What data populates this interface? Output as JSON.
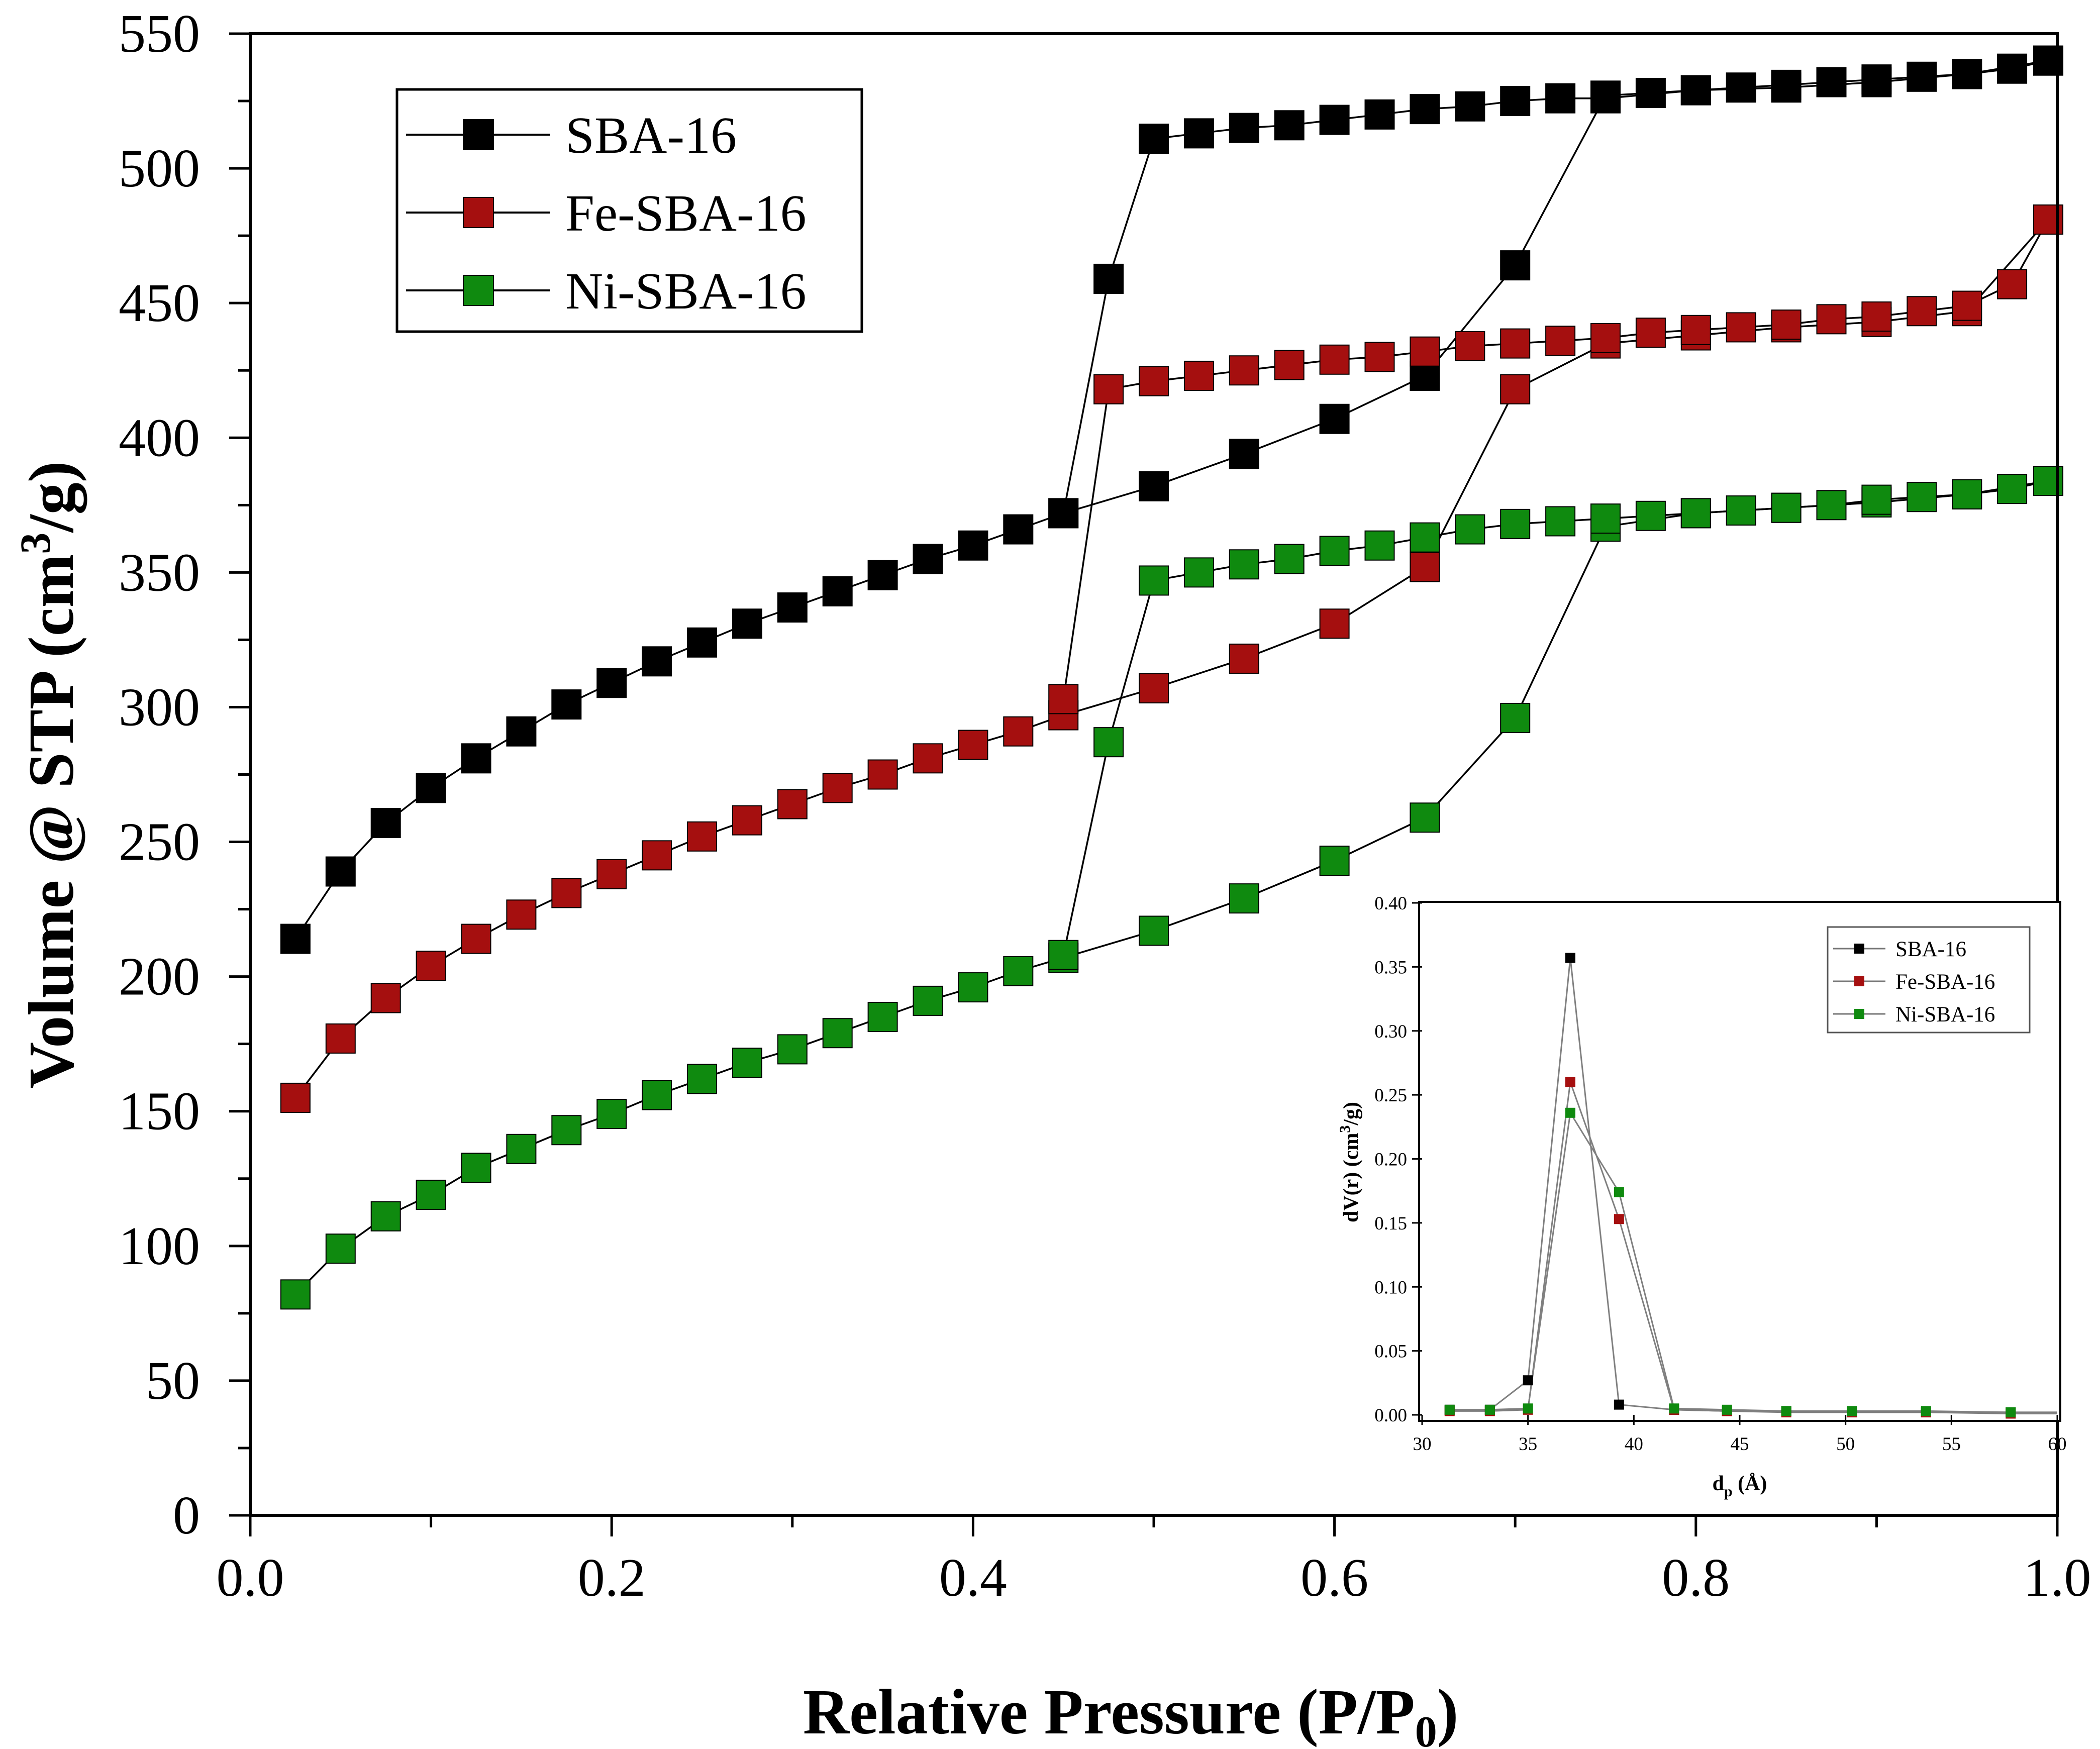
{
  "chart_data": [
    {
      "type": "scatter",
      "title": "",
      "xlabel": "Relative Pressure (P/P0)",
      "ylabel": "Volume @ STP (cm3/g)",
      "xlim": [
        0.0,
        1.0
      ],
      "ylim": [
        0,
        550
      ],
      "xticks": [
        "0.0",
        "0.2",
        "0.4",
        "0.6",
        "0.8",
        "1.0"
      ],
      "yticks": [
        "0",
        "50",
        "100",
        "150",
        "200",
        "250",
        "300",
        "350",
        "400",
        "450",
        "500",
        "550"
      ],
      "grid": false,
      "legend_position": "top-left",
      "series": [
        {
          "name": "SBA-16",
          "color": "#000000",
          "adsorption": {
            "x": [
              0.025,
              0.05,
              0.075,
              0.1,
              0.125,
              0.15,
              0.175,
              0.2,
              0.225,
              0.25,
              0.275,
              0.3,
              0.325,
              0.35,
              0.375,
              0.4,
              0.425,
              0.45,
              0.5,
              0.55,
              0.6,
              0.65,
              0.7,
              0.75,
              0.775,
              0.8,
              0.825,
              0.85,
              0.875,
              0.9,
              0.925,
              0.95,
              0.975,
              0.995
            ],
            "y": [
              214,
              239,
              257,
              270,
              281,
              291,
              301,
              309,
              317,
              324,
              331,
              337,
              343,
              349,
              355,
              360,
              366,
              372,
              382,
              394,
              407,
              423,
              464,
              527,
              528,
              529,
              530,
              531,
              532,
              533,
              534,
              535,
              537,
              540
            ]
          },
          "desorption": {
            "x": [
              0.995,
              0.95,
              0.9,
              0.85,
              0.8,
              0.75,
              0.725,
              0.7,
              0.675,
              0.65,
              0.625,
              0.6,
              0.575,
              0.55,
              0.525,
              0.5,
              0.475,
              0.45
            ],
            "y": [
              540,
              535,
              532,
              530,
              529,
              526,
              526,
              525,
              523,
              522,
              520,
              518,
              516,
              515,
              513,
              511,
              459,
              372
            ]
          }
        },
        {
          "name": "Fe-SBA-16",
          "color": "#a50f0f",
          "adsorption": {
            "x": [
              0.025,
              0.05,
              0.075,
              0.1,
              0.125,
              0.15,
              0.175,
              0.2,
              0.225,
              0.25,
              0.275,
              0.3,
              0.325,
              0.35,
              0.375,
              0.4,
              0.425,
              0.45,
              0.5,
              0.55,
              0.6,
              0.65,
              0.7,
              0.75,
              0.8,
              0.85,
              0.9,
              0.95,
              0.995
            ],
            "y": [
              155,
              177,
              192,
              204,
              214,
              223,
              231,
              238,
              245,
              252,
              258,
              264,
              270,
              275,
              281,
              286,
              291,
              297,
              307,
              318,
              331,
              352,
              418,
              435,
              438,
              441,
              443,
              447,
              481
            ]
          },
          "desorption": {
            "x": [
              0.995,
              0.975,
              0.95,
              0.925,
              0.9,
              0.875,
              0.85,
              0.825,
              0.8,
              0.775,
              0.75,
              0.725,
              0.7,
              0.675,
              0.65,
              0.625,
              0.6,
              0.575,
              0.55,
              0.525,
              0.5,
              0.475,
              0.45
            ],
            "y": [
              481,
              457,
              449,
              447,
              445,
              444,
              442,
              441,
              440,
              439,
              437,
              436,
              435,
              434,
              432,
              430,
              429,
              427,
              425,
              423,
              421,
              418,
              303
            ]
          }
        },
        {
          "name": "Ni-SBA-16",
          "color": "#0f8a0f",
          "adsorption": {
            "x": [
              0.025,
              0.05,
              0.075,
              0.1,
              0.125,
              0.15,
              0.175,
              0.2,
              0.225,
              0.25,
              0.275,
              0.3,
              0.325,
              0.35,
              0.375,
              0.4,
              0.425,
              0.45,
              0.5,
              0.55,
              0.6,
              0.65,
              0.7,
              0.75,
              0.8,
              0.85,
              0.9,
              0.95,
              0.995
            ],
            "y": [
              82,
              99,
              111,
              119,
              129,
              136,
              143,
              149,
              156,
              162,
              168,
              173,
              179,
              185,
              191,
              196,
              202,
              207,
              217,
              229,
              243,
              259,
              296,
              367,
              372,
              374,
              376,
              379,
              384
            ]
          },
          "desorption": {
            "x": [
              0.995,
              0.975,
              0.95,
              0.925,
              0.9,
              0.875,
              0.85,
              0.825,
              0.8,
              0.775,
              0.75,
              0.725,
              0.7,
              0.675,
              0.65,
              0.625,
              0.6,
              0.575,
              0.55,
              0.525,
              0.5,
              0.475,
              0.45
            ],
            "y": [
              384,
              381,
              379,
              378,
              377,
              375,
              374,
              373,
              372,
              371,
              370,
              369,
              368,
              366,
              363,
              360,
              358,
              355,
              353,
              350,
              347,
              287,
              208
            ]
          }
        }
      ]
    },
    {
      "type": "line",
      "title": "",
      "xlabel": "dp (Å)",
      "ylabel": "dV(r) (cm3/g)",
      "xlim": [
        30,
        60
      ],
      "ylim": [
        0,
        0.4
      ],
      "xticks": [
        "30",
        "35",
        "40",
        "45",
        "50",
        "55",
        "60"
      ],
      "yticks": [
        "0.00",
        "0.05",
        "0.10",
        "0.15",
        "0.20",
        "0.25",
        "0.30",
        "0.35",
        "0.40"
      ],
      "grid": false,
      "legend_position": "top-right",
      "series": [
        {
          "name": "SBA-16",
          "color": "#000000",
          "x": [
            31.3,
            33.2,
            35.0,
            37.0,
            39.3,
            41.9,
            44.4,
            47.2,
            50.3,
            53.8,
            57.8,
            60
          ],
          "y": [
            0.004,
            0.004,
            0.027,
            0.357,
            0.008,
            0.004,
            0.003,
            0.003,
            0.002,
            0.002,
            0.002,
            0.002
          ]
        },
        {
          "name": "Fe-SBA-16",
          "color": "#a50f0f",
          "x": [
            31.3,
            33.2,
            35.0,
            37.0,
            39.3,
            41.9,
            44.4,
            47.2,
            50.3,
            53.8,
            57.8,
            60
          ],
          "y": [
            0.003,
            0.003,
            0.004,
            0.26,
            0.153,
            0.004,
            0.003,
            0.002,
            0.002,
            0.002,
            0.001,
            0.001
          ]
        },
        {
          "name": "Ni-SBA-16",
          "color": "#0f8a0f",
          "x": [
            31.3,
            33.2,
            35.0,
            37.0,
            39.3,
            41.9,
            44.4,
            47.2,
            50.3,
            53.8,
            57.8,
            60
          ],
          "y": [
            0.004,
            0.004,
            0.005,
            0.236,
            0.174,
            0.005,
            0.004,
            0.003,
            0.003,
            0.003,
            0.002,
            0.002
          ]
        }
      ]
    }
  ],
  "labels": {
    "main_xlabel_main": "Relative Pressure (P/P",
    "main_xlabel_sub": "0",
    "main_xlabel_close": ")",
    "main_ylabel_main": "Volume @ STP (cm",
    "main_ylabel_sup": "3",
    "main_ylabel_close": "/g)",
    "inset_xlabel_main": "d",
    "inset_xlabel_sub": "p",
    "inset_xlabel_close": " (Å)",
    "inset_ylabel_main": "dV(r) (cm",
    "inset_ylabel_sup": "3",
    "inset_ylabel_close": "/g)"
  }
}
